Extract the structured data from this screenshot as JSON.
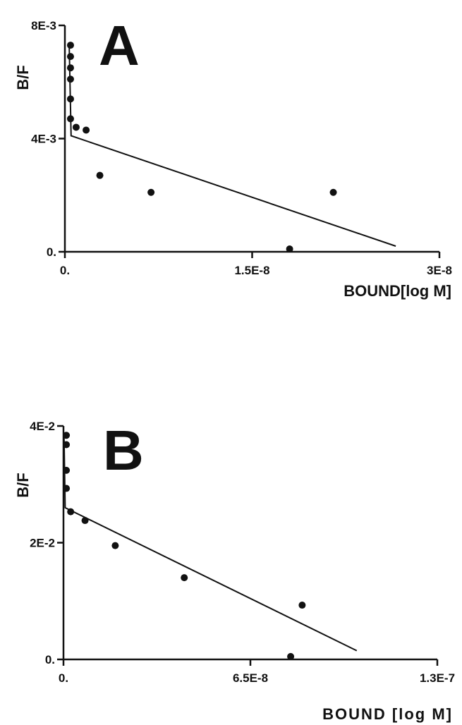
{
  "chart_data": [
    {
      "type": "scatter",
      "panel_label": "A",
      "title": "",
      "ylabel": "B/F",
      "xlabel": "BOUND[log M]",
      "xlim": [
        0,
        3e-08
      ],
      "ylim": [
        0,
        0.008
      ],
      "x_ticks": [
        0,
        1.5e-08,
        3e-08
      ],
      "x_tick_labels": [
        "0.",
        "1.5E-8",
        "3E-8"
      ],
      "y_ticks": [
        0,
        0.004,
        0.008
      ],
      "y_tick_labels": [
        "0.",
        "4E-3",
        "8E-3"
      ],
      "grid": false,
      "points": [
        {
          "x": 4.5e-10,
          "y": 0.0073
        },
        {
          "x": 4.5e-10,
          "y": 0.0069
        },
        {
          "x": 4.5e-10,
          "y": 0.0065
        },
        {
          "x": 4.5e-10,
          "y": 0.0061
        },
        {
          "x": 4.5e-10,
          "y": 0.0054
        },
        {
          "x": 4.5e-10,
          "y": 0.0047
        },
        {
          "x": 9e-10,
          "y": 0.0044
        },
        {
          "x": 1.7e-09,
          "y": 0.0043
        },
        {
          "x": 2.8e-09,
          "y": 0.0027
        },
        {
          "x": 6.9e-09,
          "y": 0.0021
        },
        {
          "x": 1.8e-08,
          "y": 0.0001
        },
        {
          "x": 2.15e-08,
          "y": 0.0021
        }
      ],
      "fit_line": [
        {
          "x": 3.5e-10,
          "y": 0.0072
        },
        {
          "x": 5e-10,
          "y": 0.0041
        },
        {
          "x": 2.65e-08,
          "y": 0.0002
        }
      ]
    },
    {
      "type": "scatter",
      "panel_label": "B",
      "title": "",
      "ylabel": "B/F",
      "xlabel": "BOUND [log M]",
      "xlim": [
        0,
        1.3e-07
      ],
      "ylim": [
        0,
        0.04
      ],
      "x_ticks": [
        0,
        6.5e-08,
        1.3e-07
      ],
      "x_tick_labels": [
        "0.",
        "6.5E-8",
        "1.3E-7"
      ],
      "y_ticks": [
        0,
        0.02,
        0.04
      ],
      "y_tick_labels": [
        "0.",
        "2E-2",
        "4E-2"
      ],
      "grid": false,
      "points": [
        {
          "x": 1e-09,
          "y": 0.0384
        },
        {
          "x": 1e-09,
          "y": 0.0368
        },
        {
          "x": 1e-09,
          "y": 0.0324
        },
        {
          "x": 1e-09,
          "y": 0.0293
        },
        {
          "x": 2.5e-09,
          "y": 0.0253
        },
        {
          "x": 7.5e-09,
          "y": 0.0238
        },
        {
          "x": 1.8e-08,
          "y": 0.0195
        },
        {
          "x": 4.2e-08,
          "y": 0.014
        },
        {
          "x": 7.9e-08,
          "y": 0.0005
        },
        {
          "x": 8.3e-08,
          "y": 0.0093
        }
      ],
      "fit_line": [
        {
          "x": 2e-10,
          "y": 0.038
        },
        {
          "x": 6e-10,
          "y": 0.026
        },
        {
          "x": 1.02e-07,
          "y": 0.0015
        }
      ]
    }
  ]
}
